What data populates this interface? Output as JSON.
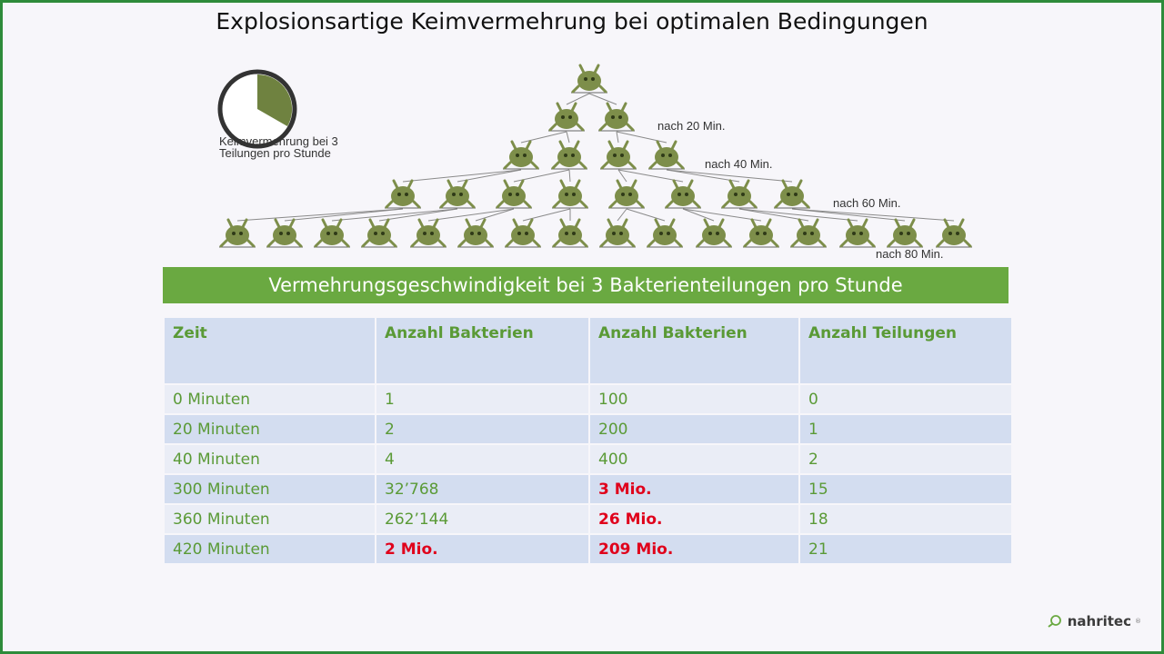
{
  "slide": {
    "title": "Explosionsartige Keimvermehrung bei optimalen Bedingungen",
    "figure": {
      "stopwatch_caption_line1": "Keimvermehrung bei 3",
      "stopwatch_caption_line2": "Teilungen pro Stunde",
      "levels": [
        "nach 20 Min.",
        "nach 40 Min.",
        "nach 60 Min.",
        "nach 80 Min."
      ],
      "stopwatch_fraction_filled": 0.333,
      "bacteria_color": "#7d8e4a"
    },
    "banner": "Vermehrungsgeschwindigkeit  bei 3 Bakterienteilungen  pro Stunde",
    "table": {
      "headers": [
        "Zeit",
        "Anzahl Bakterien",
        "Anzahl Bakterien",
        "Anzahl Teilungen"
      ],
      "rows": [
        [
          "0 Minuten",
          "1",
          "100",
          "0"
        ],
        [
          "20 Minuten",
          "2",
          "200",
          "1"
        ],
        [
          "40 Minuten",
          "4",
          "400",
          "2"
        ],
        [
          "300 Minuten",
          "32’768",
          "3 Mio.",
          "15"
        ],
        [
          "360 Minuten",
          "262’144",
          "26 Mio.",
          "18"
        ],
        [
          "420 Minuten",
          "2 Mio.",
          "209 Mio.",
          "21"
        ]
      ]
    },
    "logo": {
      "text": "nahritec",
      "mark": "®",
      "icon": "magnifier-leaf-icon"
    },
    "colors": {
      "accent_green": "#6aa941",
      "border_green": "#2e8b3a",
      "text_green": "#5a9a36",
      "alert_red": "#e0001b",
      "header_blue": "#d3ddf0",
      "row_light": "#eaedf6"
    }
  }
}
